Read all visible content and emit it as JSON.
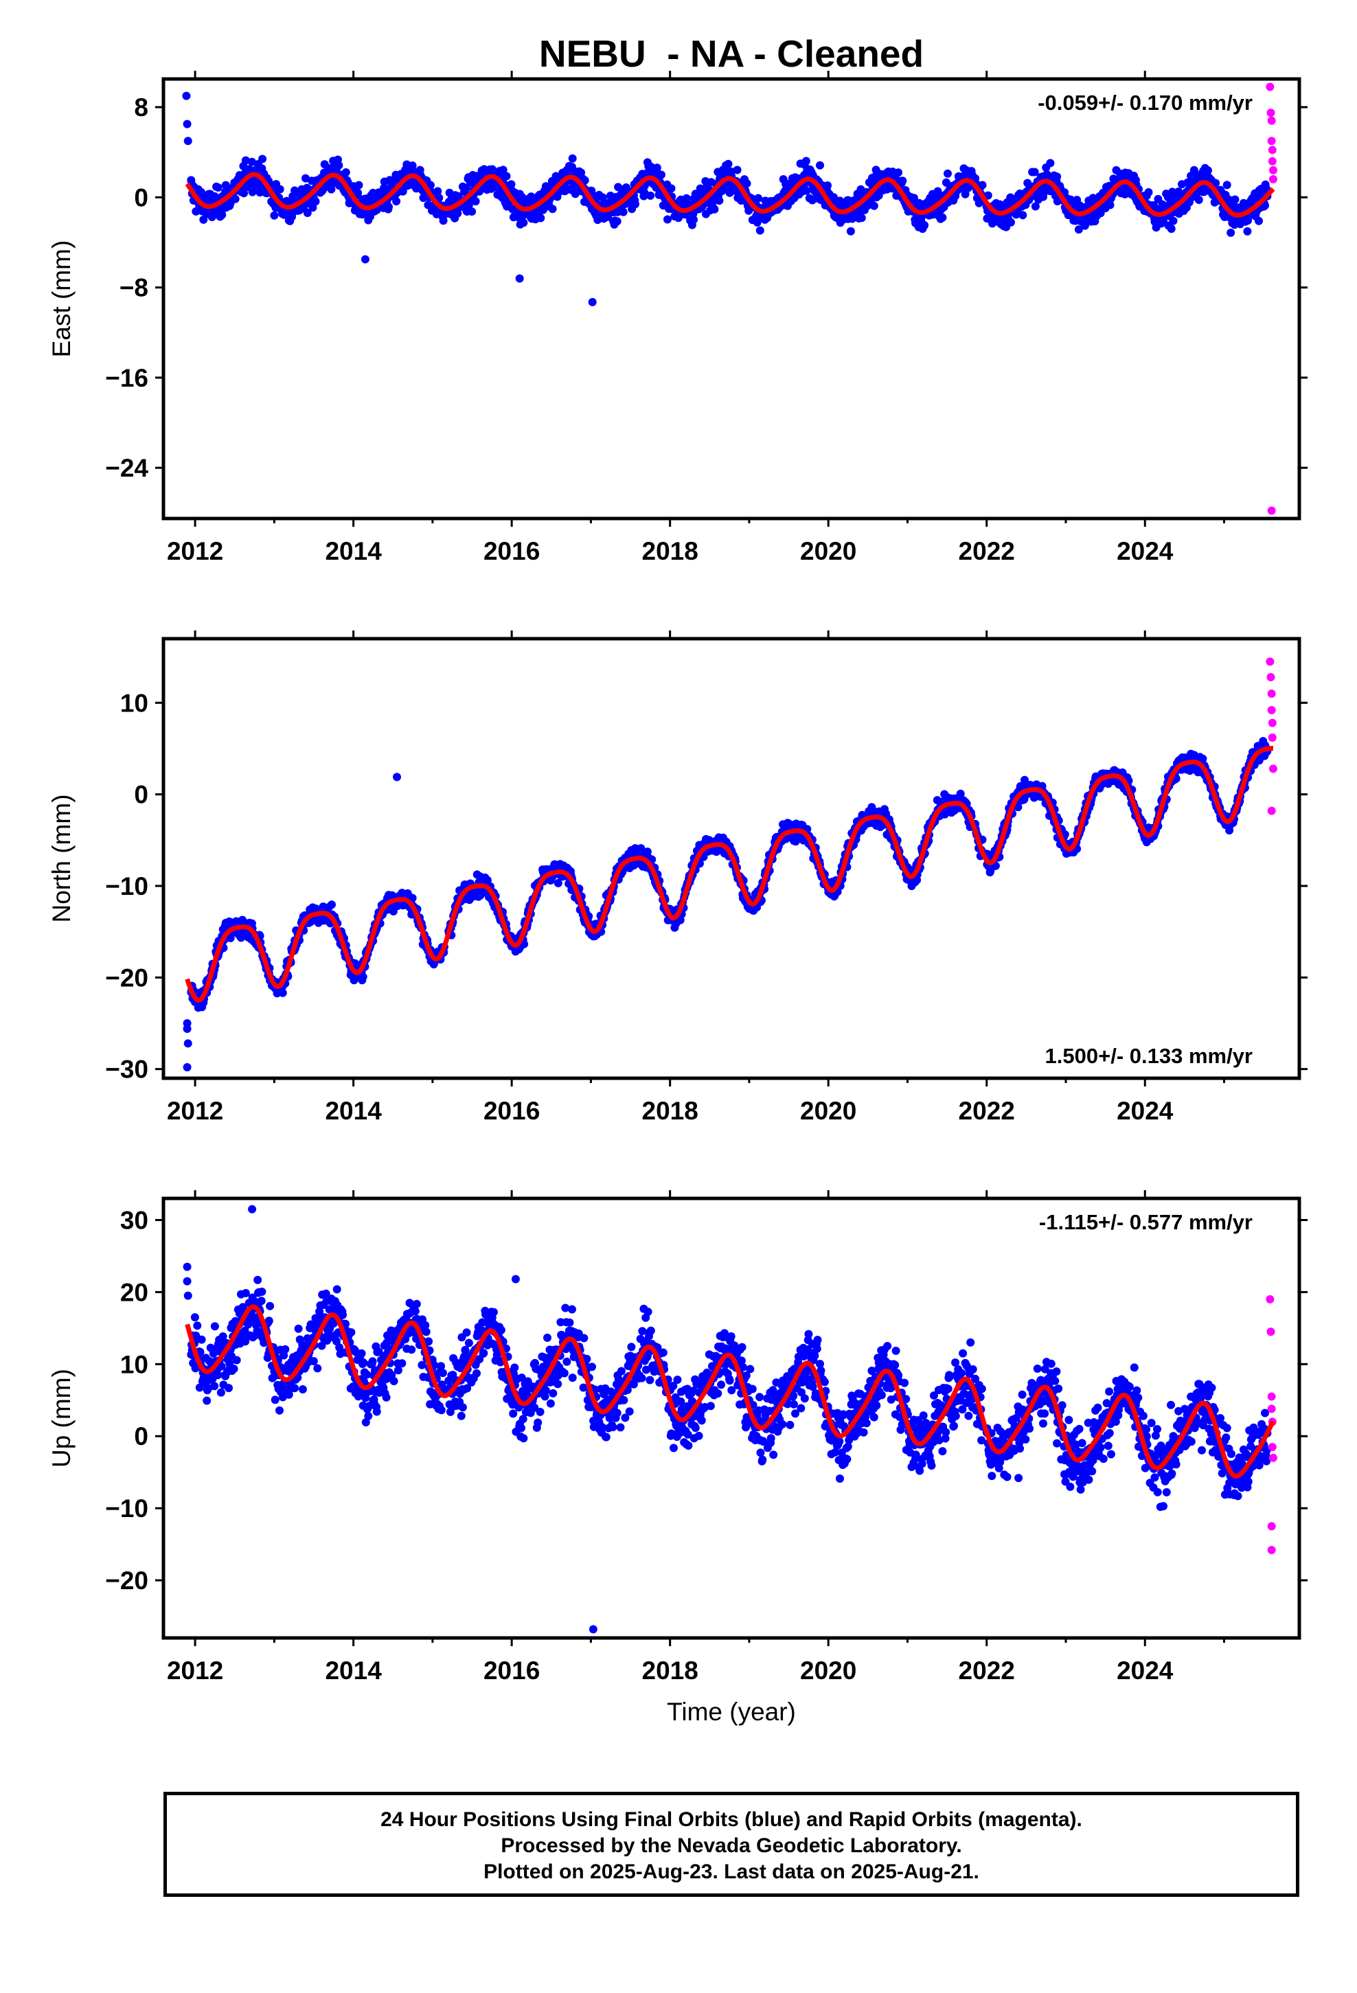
{
  "figure_title": "NEBU  - NA - Cleaned",
  "colors": {
    "final": "#0000ff",
    "rapid": "#ff00ff",
    "model": "#ff0000"
  },
  "footer": {
    "line1": "24 Hour Positions Using Final Orbits (blue) and Rapid Orbits (magenta).",
    "line2": "Processed by the Nevada Geodetic Laboratory.",
    "line3": "Plotted on 2025-Aug-23. Last data on 2025-Aug-21."
  },
  "chart_data": [
    {
      "type": "scatter",
      "component": "east",
      "ylabel": "East (mm)",
      "xlabel": "",
      "rate": "-0.059+/- 0.170 mm/yr",
      "rate_position": "top-right",
      "xlim": [
        2011.6,
        2025.95
      ],
      "ylim": [
        -28.5,
        10.5
      ],
      "xticks": [
        2012,
        2014,
        2016,
        2018,
        2020,
        2022,
        2024
      ],
      "xtick_labels": [
        "2012",
        "2014",
        "2016",
        "2018",
        "2020",
        "2022",
        "2024"
      ],
      "yticks": [
        8,
        0,
        -8,
        -16,
        -24
      ],
      "ytick_labels": [
        "8",
        "0",
        "−8",
        "−16",
        "−24"
      ],
      "grid": false,
      "model": {
        "offset": 0.15,
        "trend": -0.059,
        "annual_amp": 1.4,
        "annual_peak": 0.72,
        "semi_amp": 0.2
      },
      "scatter_sigma": 1.3,
      "outliers_final": [
        [
          2011.89,
          9.0
        ],
        [
          2011.9,
          6.5
        ],
        [
          2011.91,
          5.0
        ],
        [
          2016.1,
          -7.2
        ],
        [
          2017.02,
          -9.3
        ],
        [
          2014.15,
          -5.5
        ]
      ],
      "rapid_points": [
        [
          2025.58,
          9.8
        ],
        [
          2025.59,
          7.5
        ],
        [
          2025.6,
          6.8
        ],
        [
          2025.6,
          5.0
        ],
        [
          2025.61,
          4.2
        ],
        [
          2025.61,
          3.2
        ],
        [
          2025.62,
          2.4
        ],
        [
          2025.62,
          1.6
        ],
        [
          2025.6,
          -27.8
        ]
      ]
    },
    {
      "type": "scatter",
      "component": "north",
      "ylabel": "North (mm)",
      "xlabel": "",
      "rate": "1.500+/- 0.133 mm/yr",
      "rate_position": "bottom-right",
      "xlim": [
        2011.6,
        2025.95
      ],
      "ylim": [
        -31,
        17
      ],
      "xticks": [
        2012,
        2014,
        2016,
        2018,
        2020,
        2022,
        2024
      ],
      "xtick_labels": [
        "2012",
        "2014",
        "2016",
        "2018",
        "2020",
        "2022",
        "2024"
      ],
      "yticks": [
        10,
        0,
        -10,
        -20,
        -30
      ],
      "ytick_labels": [
        "10",
        "0",
        "−10",
        "−20",
        "−30"
      ],
      "grid": false,
      "model": {
        "offset": -8.4,
        "trend": 1.5,
        "annual_amp": 3.6,
        "annual_peak": 0.55,
        "semi_amp": 0.8
      },
      "scatter_sigma": 1.0,
      "outliers_final": [
        [
          2011.9,
          -25.0
        ],
        [
          2011.9,
          -25.6
        ],
        [
          2011.91,
          -27.2
        ],
        [
          2011.9,
          -29.8
        ],
        [
          2014.55,
          1.9
        ]
      ],
      "rapid_points": [
        [
          2025.58,
          14.5
        ],
        [
          2025.59,
          12.8
        ],
        [
          2025.6,
          11.0
        ],
        [
          2025.6,
          9.2
        ],
        [
          2025.61,
          7.8
        ],
        [
          2025.61,
          6.2
        ],
        [
          2025.62,
          2.8
        ],
        [
          2025.6,
          -1.8
        ]
      ]
    },
    {
      "type": "scatter",
      "component": "up",
      "ylabel": "Up (mm)",
      "xlabel": "Time (year)",
      "rate": "-1.115+/- 0.577 mm/yr",
      "rate_position": "top-right",
      "xlim": [
        2011.6,
        2025.95
      ],
      "ylim": [
        -28,
        33
      ],
      "xticks": [
        2012,
        2014,
        2016,
        2018,
        2020,
        2022,
        2024
      ],
      "xtick_labels": [
        "2012",
        "2014",
        "2016",
        "2018",
        "2020",
        "2022",
        "2024"
      ],
      "yticks": [
        30,
        20,
        10,
        0,
        -10,
        -20
      ],
      "ytick_labels": [
        "30",
        "20",
        "10",
        "0",
        "−10",
        "−20"
      ],
      "grid": false,
      "model": {
        "offset": 6.5,
        "trend": -1.115,
        "annual_amp": 4.6,
        "annual_peak": 0.7,
        "semi_amp": 0.8
      },
      "scatter_sigma": 4.3,
      "outliers_final": [
        [
          2011.9,
          23.5
        ],
        [
          2011.9,
          21.5
        ],
        [
          2011.91,
          19.5
        ],
        [
          2012.72,
          31.5
        ],
        [
          2017.03,
          -26.8
        ],
        [
          2016.05,
          21.8
        ]
      ],
      "rapid_points": [
        [
          2025.58,
          19.0
        ],
        [
          2025.59,
          14.5
        ],
        [
          2025.6,
          5.5
        ],
        [
          2025.6,
          3.8
        ],
        [
          2025.61,
          2.0
        ],
        [
          2025.61,
          -1.5
        ],
        [
          2025.62,
          -3.0
        ],
        [
          2025.6,
          -12.5
        ],
        [
          2025.6,
          -15.8
        ]
      ]
    }
  ]
}
